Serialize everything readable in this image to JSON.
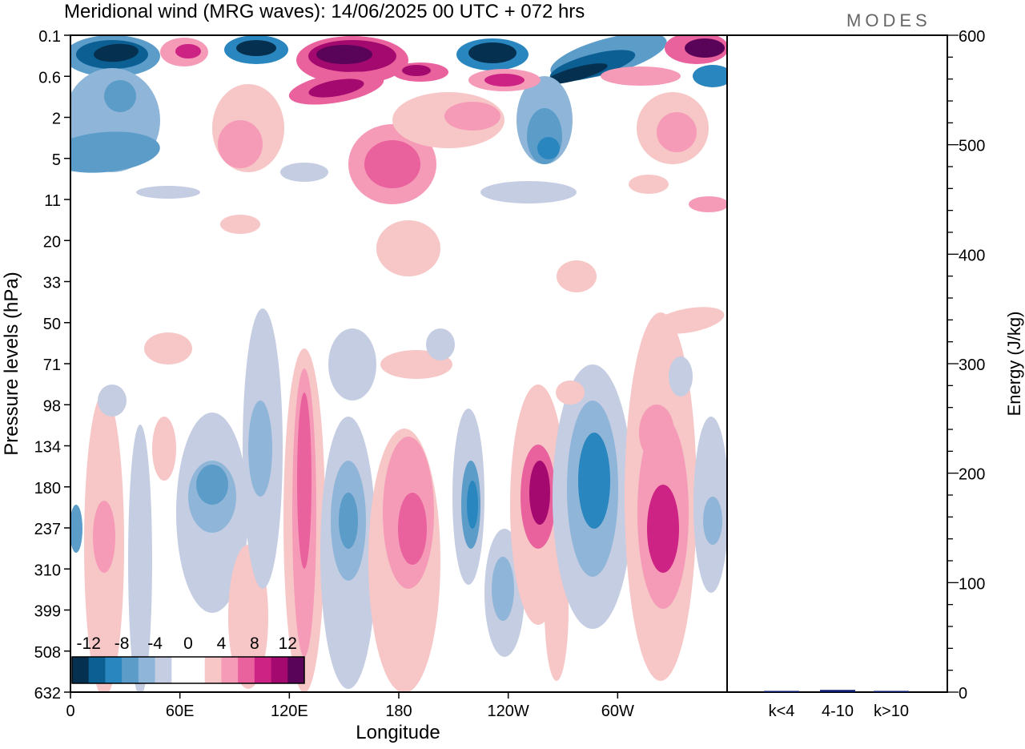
{
  "header": {
    "title": "Meridional wind (MRG waves):  14/06/2025  00 UTC  + 072 hrs",
    "brand": "MODES"
  },
  "chart_data": [
    {
      "type": "heatmap",
      "title": "Meridional wind (MRG waves):  14/06/2025  00 UTC  + 072 hrs",
      "xlabel": "Longitude",
      "ylabel": "Pressure levels (hPa)",
      "x_ticks": [
        "0",
        "60E",
        "120E",
        "180",
        "120W",
        "60W"
      ],
      "y_ticks": [
        "0.1",
        "0.6",
        "2",
        "5",
        "11",
        "20",
        "33",
        "50",
        "71",
        "98",
        "134",
        "180",
        "237",
        "310",
        "399",
        "508",
        "632"
      ],
      "colorbar": {
        "labels": [
          "-12",
          "-8",
          "-4",
          "0",
          "4",
          "8",
          "12"
        ],
        "levels": [
          -14,
          -12,
          -10,
          -8,
          -6,
          -4,
          -2,
          2,
          4,
          6,
          8,
          10,
          12,
          14
        ],
        "colors": [
          "#06304f",
          "#0b5f93",
          "#2a86bf",
          "#5b9cc9",
          "#8fb6d8",
          "#c5cde3",
          "#ffffff",
          "#ffffff",
          "#f7c6c6",
          "#f59bb8",
          "#e9619d",
          "#cc2385",
          "#a3096e",
          "#5a0459"
        ]
      }
    },
    {
      "type": "bar",
      "ylabel": "Energy (J/kg)",
      "ylim": [
        0,
        600
      ],
      "y_ticks": [
        "0",
        "100",
        "200",
        "300",
        "400",
        "500",
        "600"
      ],
      "categories": [
        "k<4",
        "4-10",
        "k>10"
      ],
      "values": [
        0.5,
        2,
        0.3
      ],
      "bar_color": "#0a1a6e"
    }
  ]
}
